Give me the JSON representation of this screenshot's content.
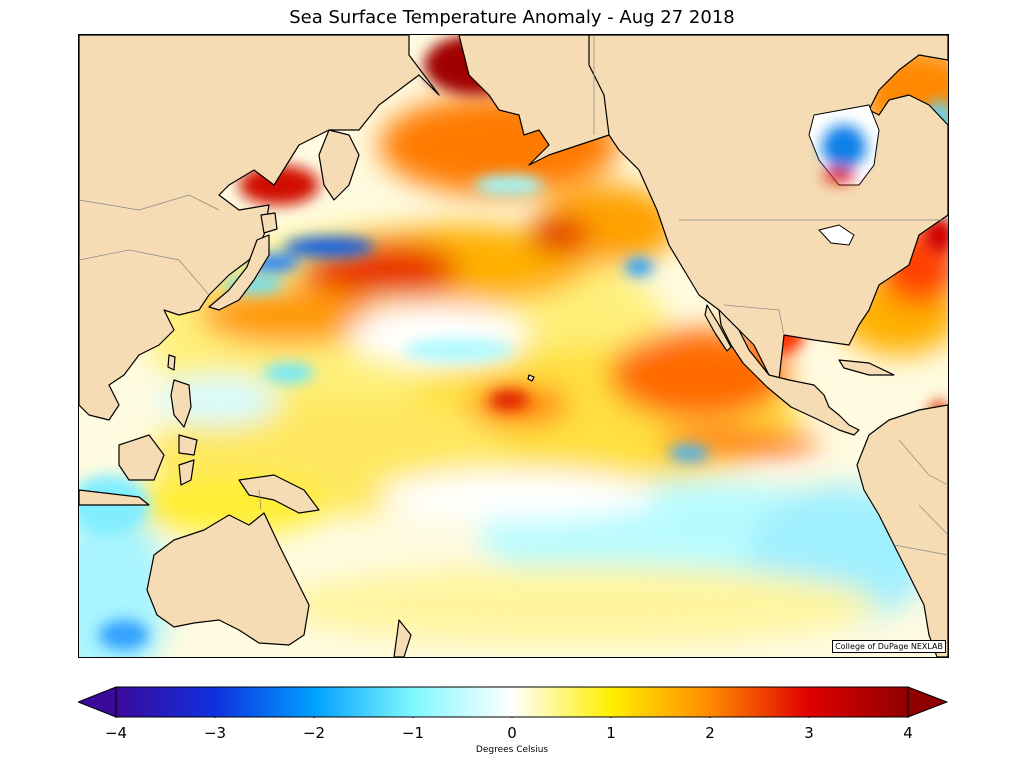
{
  "title": "Sea Surface Temperature Anomaly - Aug 27 2018",
  "credit": "College of DuPage NEXLAB",
  "colors": {
    "land": "#f5dcb4",
    "coastline": "#000000",
    "borders": "#888888",
    "ocean_neutral": "#ffffff"
  },
  "colorbar": {
    "label": "Degrees Celsius",
    "min": -4,
    "max": 4,
    "ticks": [
      {
        "value": -4,
        "label": "−4"
      },
      {
        "value": -3,
        "label": "−3"
      },
      {
        "value": -2,
        "label": "−2"
      },
      {
        "value": -1,
        "label": "−1"
      },
      {
        "value": 0,
        "label": "0"
      },
      {
        "value": 1,
        "label": "1"
      },
      {
        "value": 2,
        "label": "2"
      },
      {
        "value": 3,
        "label": "3"
      },
      {
        "value": 4,
        "label": "4"
      }
    ],
    "stops": [
      {
        "value": -4,
        "color": "#3a0a9a"
      },
      {
        "value": -3,
        "color": "#1030e0"
      },
      {
        "value": -2,
        "color": "#00a0ff"
      },
      {
        "value": -1,
        "color": "#80f8ff"
      },
      {
        "value": 0,
        "color": "#ffffff"
      },
      {
        "value": 1,
        "color": "#ffee00"
      },
      {
        "value": 2,
        "color": "#ff8a00"
      },
      {
        "value": 3,
        "color": "#e00000"
      },
      {
        "value": 4,
        "color": "#900000"
      }
    ]
  }
}
